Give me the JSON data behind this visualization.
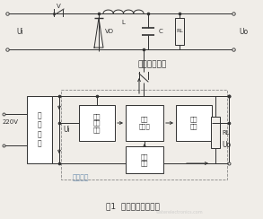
{
  "title": "图1  直流开关电源管理",
  "bg_color": "#f0ede8",
  "line_color": "#303030",
  "text_color": "#303030",
  "label_220v": "220V",
  "label_ui_left": "Ui",
  "label_ui_bottom": "Ui",
  "label_uo_top": "Uo",
  "label_uo_right": "Uo",
  "label_v": "V",
  "label_vd": "VD",
  "label_l": "L",
  "label_c": "C",
  "label_rl_top": "RL",
  "label_rl_bottom": "RL",
  "label_switch_element": "开关调整元件",
  "label_switch_pulse": "开关脉冲",
  "box1_label": "整\n流\n电\n路",
  "box2_label": "脉冲\n调宽\n电路",
  "box3_label": "比较\n放大器",
  "box4_label": "基准\n电路",
  "box5_label": "取样\n电路",
  "watermark": "waterelectronics.com"
}
